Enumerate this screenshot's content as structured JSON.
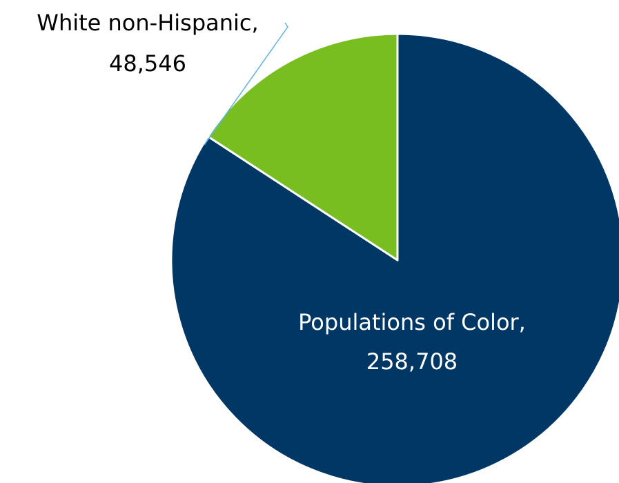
{
  "chart_data": {
    "type": "pie",
    "title": "",
    "start_angle_deg": 0,
    "direction": "clockwise",
    "slices": [
      {
        "label": "Populations of Color",
        "value": 258708,
        "value_text": "258,708",
        "color": "#003764",
        "label_color": "#ffffff"
      },
      {
        "label": "White non-Hispanic",
        "value": 48546,
        "value_text": "48,546",
        "color": "#78BE21",
        "label_color": "#000000"
      }
    ],
    "separator_color": "#ffffff",
    "leader_line_color": "#5BB4E5"
  }
}
